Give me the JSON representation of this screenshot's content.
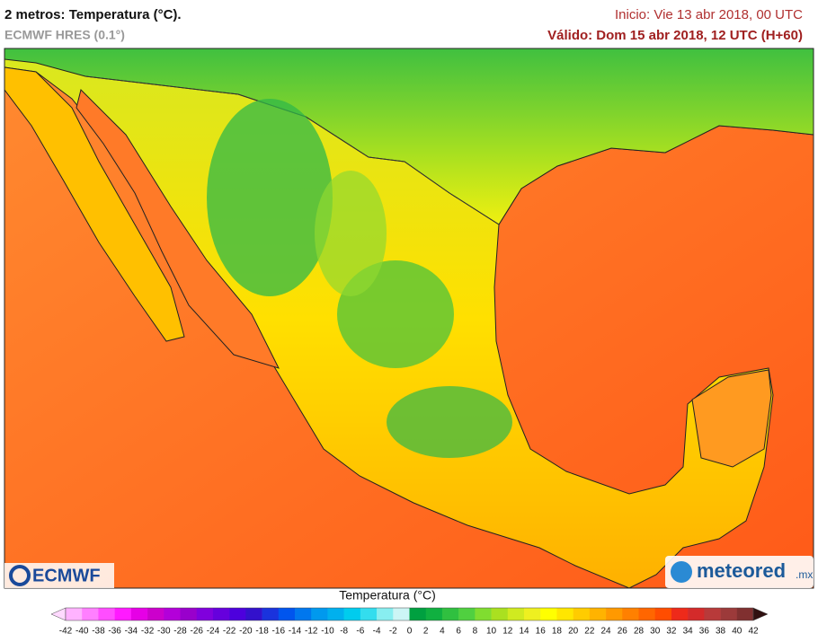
{
  "header": {
    "title": "2 metros: Temperatura (°C).",
    "subtitle": "ECMWF HRES (0.1°)",
    "init": "Inicio: Vie 13 abr 2018, 00 UTC",
    "valid": "Válido: Dom 15 abr 2018, 12 UTC (H+60)"
  },
  "logos": {
    "left": "ECMWF",
    "right": "meteored",
    "right_suffix": ".mx"
  },
  "colorbar": {
    "label": "Temperatura (°C)",
    "ticks": [
      -42,
      -40,
      -38,
      -36,
      -34,
      -32,
      -30,
      -28,
      -26,
      -24,
      -22,
      -20,
      -18,
      -16,
      -14,
      -12,
      -10,
      -8,
      -6,
      -4,
      -2,
      0,
      2,
      4,
      6,
      8,
      10,
      12,
      14,
      16,
      18,
      20,
      22,
      24,
      26,
      28,
      30,
      32,
      34,
      36,
      38,
      40,
      42
    ],
    "colors": [
      "#ffb3ff",
      "#ff80ff",
      "#ff4dff",
      "#ff1aff",
      "#e600e6",
      "#cc00cc",
      "#b300d9",
      "#9900cc",
      "#8000dd",
      "#6600dd",
      "#4d00dd",
      "#3311cc",
      "#1a33dd",
      "#0055ee",
      "#0077ee",
      "#0099ee",
      "#00b0ee",
      "#00ccee",
      "#33ddee",
      "#88eef0",
      "#ccf5f5",
      "#00a040",
      "#10b040",
      "#30c040",
      "#50d040",
      "#80dd30",
      "#aae020",
      "#d0ea20",
      "#eef020",
      "#ffff00",
      "#ffe600",
      "#ffcc00",
      "#ffb300",
      "#ff9900",
      "#ff8000",
      "#ff6600",
      "#ff4d00",
      "#ee2a1a",
      "#d42a2a",
      "#b83a3a",
      "#9c3a3a",
      "#803030"
    ],
    "under_color": "#ffd9ff",
    "over_color": "#301010"
  }
}
